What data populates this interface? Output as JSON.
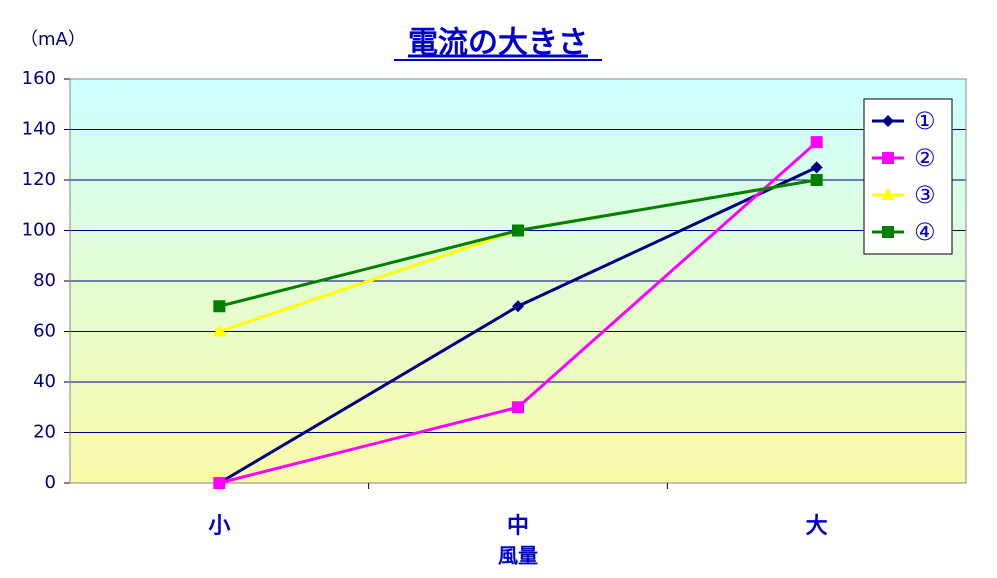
{
  "chart_data": {
    "type": "line",
    "title": "電流の大きさ",
    "y_label": "（mA）",
    "x_label": "風量",
    "categories": [
      "小",
      "中",
      "大"
    ],
    "series": [
      {
        "name": "①",
        "color": "#000080",
        "marker": "diamond",
        "values": [
          0,
          70,
          125
        ]
      },
      {
        "name": "②",
        "color": "#ff00ff",
        "marker": "square",
        "values": [
          0,
          30,
          135
        ]
      },
      {
        "name": "③",
        "color": "#ffff00",
        "marker": "triangle",
        "values": [
          60,
          100,
          120
        ]
      },
      {
        "name": "④",
        "color": "#008000",
        "marker": "square",
        "values": [
          70,
          100,
          120
        ]
      }
    ],
    "ylim": [
      0,
      160
    ],
    "yticks": [
      0,
      20,
      40,
      60,
      80,
      100,
      120,
      140,
      160
    ],
    "grid": true,
    "legend": "upper right"
  }
}
